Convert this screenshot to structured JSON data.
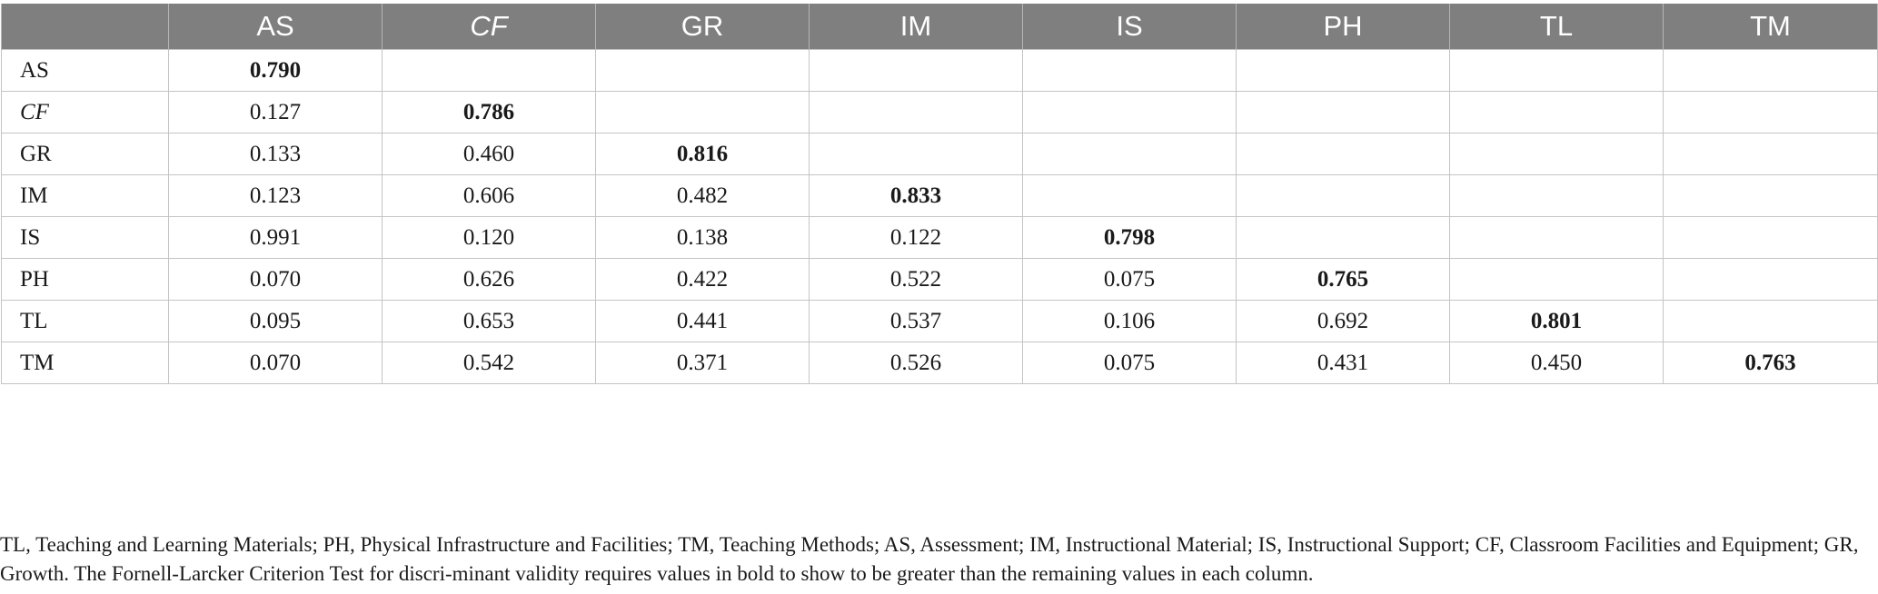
{
  "table": {
    "columns": [
      {
        "label": "AS",
        "italic": false
      },
      {
        "label": "CF",
        "italic": true
      },
      {
        "label": "GR",
        "italic": false
      },
      {
        "label": "IM",
        "italic": false
      },
      {
        "label": "IS",
        "italic": false
      },
      {
        "label": "PH",
        "italic": false
      },
      {
        "label": "TL",
        "italic": false
      },
      {
        "label": "TM",
        "italic": false
      }
    ],
    "rows": [
      {
        "label": "AS",
        "italic": false,
        "values": [
          "0.790",
          "",
          "",
          "",
          "",
          "",
          "",
          ""
        ]
      },
      {
        "label": "CF",
        "italic": true,
        "values": [
          "0.127",
          "0.786",
          "",
          "",
          "",
          "",
          "",
          ""
        ]
      },
      {
        "label": "GR",
        "italic": false,
        "values": [
          "0.133",
          "0.460",
          "0.816",
          "",
          "",
          "",
          "",
          ""
        ]
      },
      {
        "label": "IM",
        "italic": false,
        "values": [
          "0.123",
          "0.606",
          "0.482",
          "0.833",
          "",
          "",
          "",
          ""
        ]
      },
      {
        "label": "IS",
        "italic": false,
        "values": [
          "0.991",
          "0.120",
          "0.138",
          "0.122",
          "0.798",
          "",
          "",
          ""
        ]
      },
      {
        "label": "PH",
        "italic": false,
        "values": [
          "0.070",
          "0.626",
          "0.422",
          "0.522",
          "0.075",
          "0.765",
          "",
          ""
        ]
      },
      {
        "label": "TL",
        "italic": false,
        "values": [
          "0.095",
          "0.653",
          "0.441",
          "0.537",
          "0.106",
          "0.692",
          "0.801",
          ""
        ]
      },
      {
        "label": "TM",
        "italic": false,
        "values": [
          "0.070",
          "0.542",
          "0.371",
          "0.526",
          "0.075",
          "0.431",
          "0.450",
          "0.763"
        ]
      }
    ],
    "bold_cells": "diagonal"
  },
  "footnote": "TL, Teaching and Learning Materials; PH, Physical Infrastructure and Facilities; TM, Teaching Methods; AS, Assessment; IM, Instructional Material; IS, Instructional Support; CF, Classroom Facilities and Equipment; GR, Growth. The Fornell-Larcker Criterion Test for discri-minant validity requires values in bold to show to be greater than the remaining values in each column.",
  "colors": {
    "header_bg": "#7f7f7f",
    "header_text": "#ffffff",
    "grid_line": "#c4c4c4",
    "body_text": "#1a1a1a"
  }
}
